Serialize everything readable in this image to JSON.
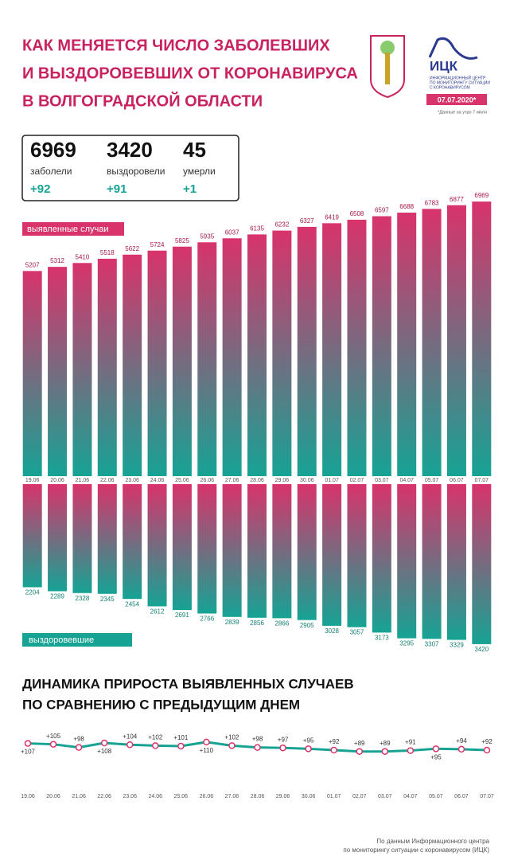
{
  "header": {
    "title_lines": [
      "КАК МЕНЯЕТСЯ ЧИСЛО ЗАБОЛЕВШИХ",
      "И ВЫЗДОРОВЕВШИХ ОТ КОРОНАВИРУСА",
      "В ВОЛГОГРАДСКОЙ ОБЛАСТИ"
    ],
    "logo_name": "ИЦК",
    "logo_caption": [
      "ИНФОРМАЦИОННЫЙ ЦЕНТР",
      "ПО МОНИТОРИНГУ СИТУАЦИИ",
      "С КОРОНАВИРУСОМ"
    ],
    "date": "07.07.2020*",
    "date_note": "*Данные на утро 7 июля"
  },
  "stats": [
    {
      "value": "6969",
      "label": "заболели",
      "change": "+92"
    },
    {
      "value": "3420",
      "label": "выздоровели",
      "change": "+91"
    },
    {
      "value": "45",
      "label": "умерли",
      "change": "+1"
    }
  ],
  "chart_data": [
    {
      "type": "bar",
      "label": "выявленные случаи",
      "direction": "up",
      "colors": [
        "#d8336b",
        "#16a394"
      ],
      "categories": [
        "19.06",
        "20.06",
        "21.06",
        "22.06",
        "23.06",
        "24.06",
        "25.06",
        "26.06",
        "27.06",
        "28.06",
        "29.06",
        "30.06",
        "01.07",
        "02.07",
        "03.07",
        "04.07",
        "05.07",
        "06.07",
        "07.07"
      ],
      "values": [
        5207,
        5312,
        5410,
        5518,
        5622,
        5724,
        5825,
        5935,
        6037,
        6135,
        6232,
        6327,
        6419,
        6508,
        6597,
        6688,
        6783,
        6877,
        6969
      ],
      "ylim": [
        0,
        7800
      ]
    },
    {
      "type": "bar",
      "label": "выздоровевшие",
      "direction": "down",
      "colors": [
        "#d8336b",
        "#16a394"
      ],
      "values": [
        2204,
        2289,
        2328,
        2345,
        2454,
        2612,
        2691,
        2766,
        2839,
        2856,
        2866,
        2905,
        3028,
        3057,
        3173,
        3295,
        3307,
        3329,
        3420
      ],
      "ylim": [
        0,
        4000
      ]
    },
    {
      "type": "line",
      "title_lines": [
        "ДИНАМИКА ПРИРОСТА ВЫЯВЛЕННЫХ СЛУЧАЕВ",
        "ПО СРАВНЕНИЮ С ПРЕДЫДУЩИМ ДНЕМ"
      ],
      "color": "#16a394",
      "marker_color": "#d8336b",
      "categories": [
        "19.06",
        "20.06",
        "21.06",
        "22.06",
        "23.06",
        "24.06",
        "25.06",
        "26.06",
        "27.06",
        "28.06",
        "29.06",
        "30.06",
        "01.07",
        "02.07",
        "03.07",
        "04.07",
        "05.07",
        "06.07",
        "07.07"
      ],
      "values": [
        107,
        105,
        98,
        108,
        104,
        102,
        101,
        110,
        102,
        98,
        97,
        95,
        92,
        89,
        89,
        91,
        95,
        94,
        92
      ],
      "value_labels": [
        "+107",
        "+105",
        "+98",
        "+108",
        "+104",
        "+102",
        "+101",
        "+110",
        "+102",
        "+98",
        "+97",
        "+95",
        "+92",
        "+89",
        "+89",
        "+91",
        "+95",
        "+94",
        "+92"
      ],
      "ylim": [
        60,
        140
      ]
    }
  ],
  "footer": [
    "По данным Информационного центра",
    "по мониторингу ситуации с коронавирусом (ИЦК)"
  ]
}
